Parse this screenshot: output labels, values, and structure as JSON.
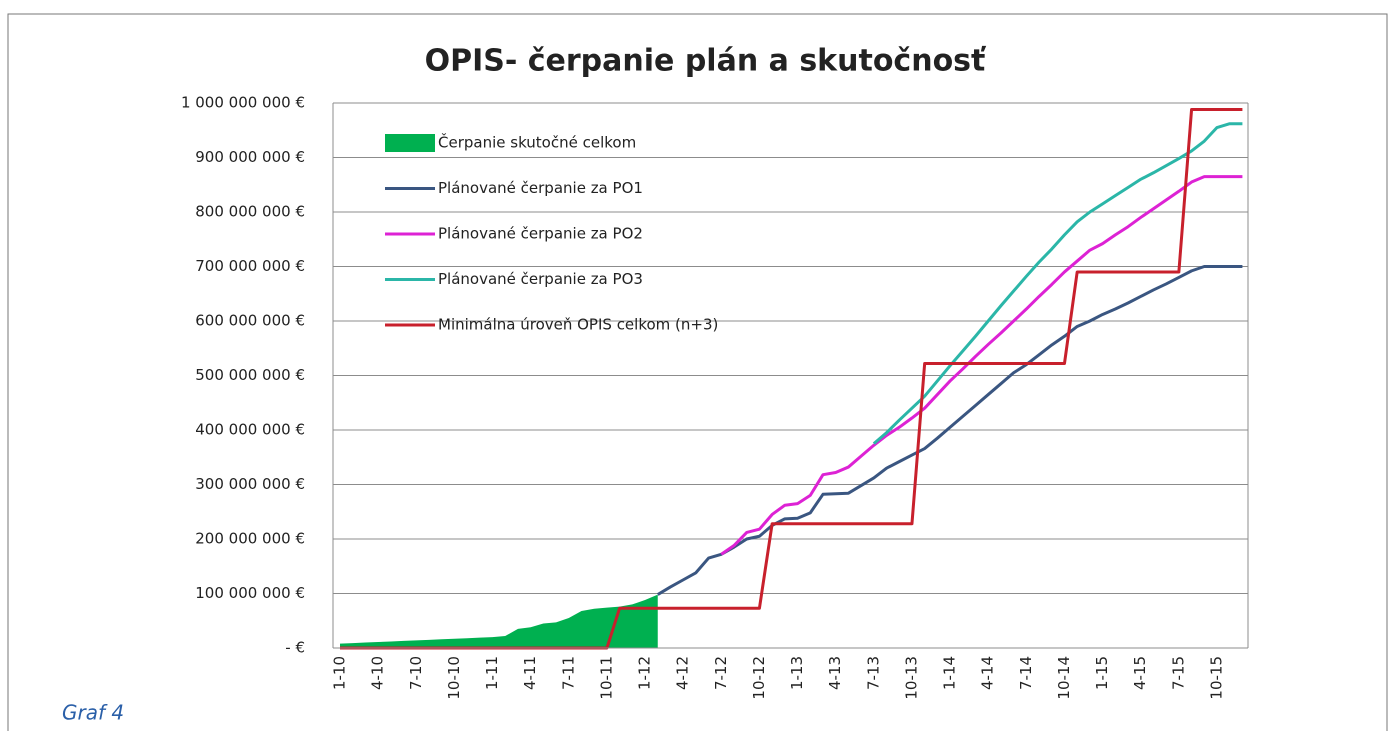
{
  "chart_data": {
    "type": "line",
    "title": "OPIS- čerpanie plán a skutočnosť",
    "annotation": "Graf 4",
    "categories": [
      "1-10",
      null,
      null,
      "4-10",
      null,
      null,
      "7-10",
      null,
      null,
      "10-10",
      null,
      null,
      "1-11",
      null,
      null,
      "4-11",
      null,
      null,
      "7-11",
      null,
      null,
      "10-11",
      null,
      null,
      "1-12",
      null,
      null,
      "4-12",
      null,
      null,
      "7-12",
      null,
      null,
      "10-12",
      null,
      null,
      "1-13",
      null,
      null,
      "4-13",
      null,
      null,
      "7-13",
      null,
      null,
      "10-13",
      null,
      null,
      "1-14",
      null,
      null,
      "4-14",
      null,
      null,
      "7-14",
      null,
      null,
      "10-14",
      null,
      null,
      "1-15",
      null,
      null,
      "4-15",
      null,
      null,
      "7-15",
      null,
      null,
      "10-15",
      null,
      null
    ],
    "series": [
      {
        "name": "Čerpanie skutočné celkom",
        "type": "area",
        "color": "#00b050",
        "values": [
          8000000,
          9000000,
          10000000,
          11000000,
          12000000,
          13000000,
          14000000,
          15000000,
          16000000,
          17000000,
          18000000,
          19000000,
          20000000,
          22000000,
          35000000,
          38000000,
          45000000,
          47000000,
          55000000,
          68000000,
          72000000,
          74000000,
          76000000,
          80000000,
          88000000,
          98000000,
          null,
          null,
          null,
          null,
          null,
          null,
          null,
          null,
          null,
          null,
          null,
          null,
          null,
          null,
          null,
          null,
          null,
          null,
          null,
          null,
          null,
          null,
          null,
          null,
          null,
          null,
          null,
          null,
          null,
          null,
          null,
          null,
          null,
          null,
          null,
          null,
          null,
          null,
          null,
          null,
          null,
          null,
          null,
          null,
          null,
          null
        ]
      },
      {
        "name": "Plánované čerpanie za PO1",
        "type": "line",
        "color": "#3a5681",
        "values": [
          null,
          null,
          null,
          null,
          null,
          null,
          null,
          null,
          null,
          null,
          null,
          null,
          null,
          null,
          null,
          null,
          null,
          null,
          null,
          null,
          null,
          null,
          null,
          null,
          null,
          98000000,
          112000000,
          125000000,
          138000000,
          165000000,
          172000000,
          185000000,
          200000000,
          205000000,
          225000000,
          237000000,
          238000000,
          248000000,
          282000000,
          283000000,
          284000000,
          298000000,
          312000000,
          330000000,
          342000000,
          354000000,
          366000000,
          385000000,
          405000000,
          425000000,
          445000000,
          465000000,
          485000000,
          505000000,
          520000000,
          538000000,
          556000000,
          572000000,
          590000000,
          600000000,
          612000000,
          622000000,
          633000000,
          645000000,
          657000000,
          668000000,
          680000000,
          692000000,
          700000000,
          700000000,
          700000000,
          700000000
        ]
      },
      {
        "name": "Plánované čerpanie za PO2",
        "type": "line",
        "color": "#dd22d4",
        "values": [
          null,
          null,
          null,
          null,
          null,
          null,
          null,
          null,
          null,
          null,
          null,
          null,
          null,
          null,
          null,
          null,
          null,
          null,
          null,
          null,
          null,
          null,
          null,
          null,
          null,
          null,
          null,
          null,
          null,
          null,
          172000000,
          188000000,
          212000000,
          218000000,
          245000000,
          262000000,
          265000000,
          280000000,
          318000000,
          322000000,
          332000000,
          352000000,
          372000000,
          390000000,
          405000000,
          422000000,
          440000000,
          465000000,
          490000000,
          512000000,
          535000000,
          557000000,
          578000000,
          600000000,
          622000000,
          645000000,
          667000000,
          690000000,
          710000000,
          730000000,
          742000000,
          758000000,
          773000000,
          790000000,
          806000000,
          822000000,
          838000000,
          855000000,
          865000000,
          865000000,
          865000000,
          865000000
        ]
      },
      {
        "name": "Plánované čerpanie za PO3",
        "type": "line",
        "color": "#2bb6a8",
        "values": [
          null,
          null,
          null,
          null,
          null,
          null,
          null,
          null,
          null,
          null,
          null,
          null,
          null,
          null,
          null,
          null,
          null,
          null,
          null,
          null,
          null,
          null,
          null,
          null,
          null,
          null,
          null,
          null,
          null,
          null,
          null,
          null,
          null,
          null,
          null,
          null,
          null,
          null,
          null,
          null,
          null,
          null,
          375000000,
          395000000,
          418000000,
          440000000,
          462000000,
          490000000,
          518000000,
          545000000,
          572000000,
          600000000,
          628000000,
          655000000,
          682000000,
          708000000,
          732000000,
          758000000,
          782000000,
          800000000,
          815000000,
          830000000,
          845000000,
          860000000,
          872000000,
          885000000,
          898000000,
          912000000,
          930000000,
          955000000,
          962000000,
          962000000
        ]
      },
      {
        "name": "Minimálna úroveň OPIS celkom (n+3)",
        "type": "line",
        "color": "#c8202c",
        "values": [
          0,
          0,
          0,
          0,
          0,
          0,
          0,
          0,
          0,
          0,
          0,
          0,
          0,
          0,
          0,
          0,
          0,
          0,
          0,
          0,
          0,
          0,
          73000000,
          73000000,
          73000000,
          73000000,
          73000000,
          73000000,
          73000000,
          73000000,
          73000000,
          73000000,
          73000000,
          73000000,
          228000000,
          228000000,
          228000000,
          228000000,
          228000000,
          228000000,
          228000000,
          228000000,
          228000000,
          228000000,
          228000000,
          228000000,
          522000000,
          522000000,
          522000000,
          522000000,
          522000000,
          522000000,
          522000000,
          522000000,
          522000000,
          522000000,
          522000000,
          522000000,
          690000000,
          690000000,
          690000000,
          690000000,
          690000000,
          690000000,
          690000000,
          690000000,
          690000000,
          988000000,
          988000000,
          988000000,
          988000000,
          988000000
        ]
      }
    ],
    "ylim": [
      0,
      1000000000
    ],
    "yticks": [
      {
        "value": 0,
        "label": "-   €"
      },
      {
        "value": 100000000,
        "label": "100 000 000 €"
      },
      {
        "value": 200000000,
        "label": "200 000 000 €"
      },
      {
        "value": 300000000,
        "label": "300 000 000 €"
      },
      {
        "value": 400000000,
        "label": "400 000 000 €"
      },
      {
        "value": 500000000,
        "label": "500 000 000 €"
      },
      {
        "value": 600000000,
        "label": "600 000 000 €"
      },
      {
        "value": 700000000,
        "label": "700 000 000 €"
      },
      {
        "value": 800000000,
        "label": "800 000 000 €"
      },
      {
        "value": 900000000,
        "label": "900 000 000 €"
      },
      {
        "value": 1000000000,
        "label": "1 000 000 000 €"
      }
    ],
    "grid": true,
    "legend": "upper left"
  }
}
